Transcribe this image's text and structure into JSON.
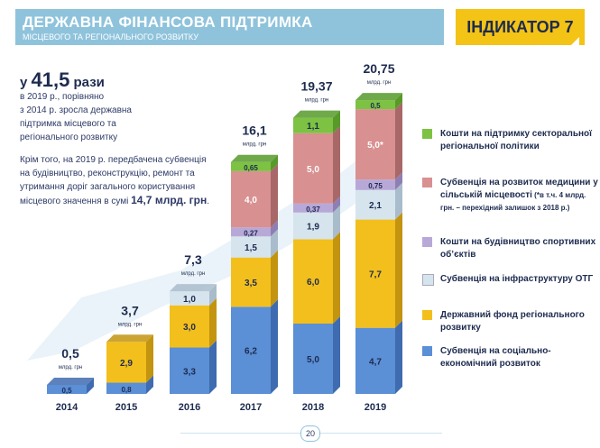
{
  "header": {
    "title": "ДЕРЖАВНА ФІНАНСОВА  ПІДТРИМКА",
    "subtitle": "МІСЦЕВОГО ТА РЕГІОНАЛЬНОГО РОЗВИТКУ",
    "indicator": "ІНДИКАТОР 7"
  },
  "summary": {
    "prefix": "у",
    "value": "41,5",
    "suffix": "рази",
    "text": [
      "в 2019 р., порівняно",
      "з 2014 р. зросла державна",
      "підтримка місцевого та",
      "регіонального розвитку"
    ],
    "note_lines": [
      "Крім того, на 2019 р. передбачена субвенція",
      "на будівництво, реконструкцію, ремонт та",
      "утримання доріг  загального користування"
    ],
    "note_last": "місцевого значення в сумі ",
    "note_amount": "14,7 млрд. грн",
    "note_end": "."
  },
  "page_number": "20",
  "chart_data": {
    "type": "bar",
    "stacked": true,
    "unit": "млрд. грн",
    "categories": [
      "2014",
      "2015",
      "2016",
      "2017",
      "2018",
      "2019"
    ],
    "totals": [
      "0,5",
      "3,7",
      "7,3",
      "16,1",
      "19,37",
      "20,75"
    ],
    "series": [
      {
        "name": "Субвенція на соціально-економічний розвиток",
        "color": "#5b8fd6",
        "side": "#3f6bb0",
        "values": [
          0.5,
          0.8,
          3.3,
          6.2,
          5.0,
          4.7
        ],
        "labels": [
          "0,5",
          "0,8",
          "3,3",
          "6,2",
          "5,0",
          "4,7"
        ]
      },
      {
        "name": "Державний фонд регіонального розвитку",
        "color": "#f2bf1c",
        "side": "#c29410",
        "values": [
          0,
          2.9,
          3.0,
          3.5,
          6.0,
          7.7
        ],
        "labels": [
          "",
          "2,9",
          "3,0",
          "3,5",
          "6,0",
          "7,7"
        ]
      },
      {
        "name": "Субвенція на інфраструктуру ОТГ",
        "color": "#d6e4ee",
        "side": "#a9bccb",
        "values": [
          0,
          0,
          1.0,
          1.5,
          1.9,
          2.1
        ],
        "labels": [
          "",
          "",
          "1,0",
          "1,5",
          "1,9",
          "2,1"
        ]
      },
      {
        "name": "Кошти на будівництво спортивних об’єктів",
        "color": "#b8a8d8",
        "side": "#8e7fb3",
        "values": [
          0,
          0,
          0,
          0.27,
          0.37,
          0.75
        ],
        "labels": [
          "",
          "",
          "",
          "0,27",
          "0,37",
          "0,75"
        ]
      },
      {
        "name": "Субвенція на розвиток медицини у сільській місцевості",
        "color": "#d99090",
        "side": "#a86868",
        "values": [
          0,
          0,
          0,
          4.0,
          5.0,
          5.0
        ],
        "labels": [
          "",
          "",
          "",
          "4,0",
          "5,0",
          "5,0*"
        ]
      },
      {
        "name": "Кошти на підтримку секторальної регіональної політики",
        "color": "#7dc242",
        "side": "#579a2a",
        "values": [
          0,
          0,
          0,
          0.65,
          1.1,
          0.5
        ],
        "labels": [
          "",
          "",
          "",
          "0,65",
          "1,1",
          "0,5"
        ]
      }
    ],
    "legend": [
      {
        "text": "Кошти на підтримку секторальної регіональної політики",
        "color": "#7dc242"
      },
      {
        "text": "Субвенція на розвиток медицини у сільській місцевості",
        "note": "(*в т.ч. 4 млрд. грн. – перехідний залишок з 2018 р.)",
        "color": "#d99090"
      },
      {
        "text": "Кошти на будівництво спортивних об’єктів",
        "color": "#b8a8d8"
      },
      {
        "text": "Субвенція на інфраструктуру ОТГ",
        "color": "#d6e4ee"
      },
      {
        "text": "Державний фонд регіонального розвитку",
        "color": "#f2bf1c"
      },
      {
        "text": "Субвенція на соціально-економічний розвиток",
        "color": "#5b8fd6"
      }
    ],
    "legend_position": "right"
  }
}
